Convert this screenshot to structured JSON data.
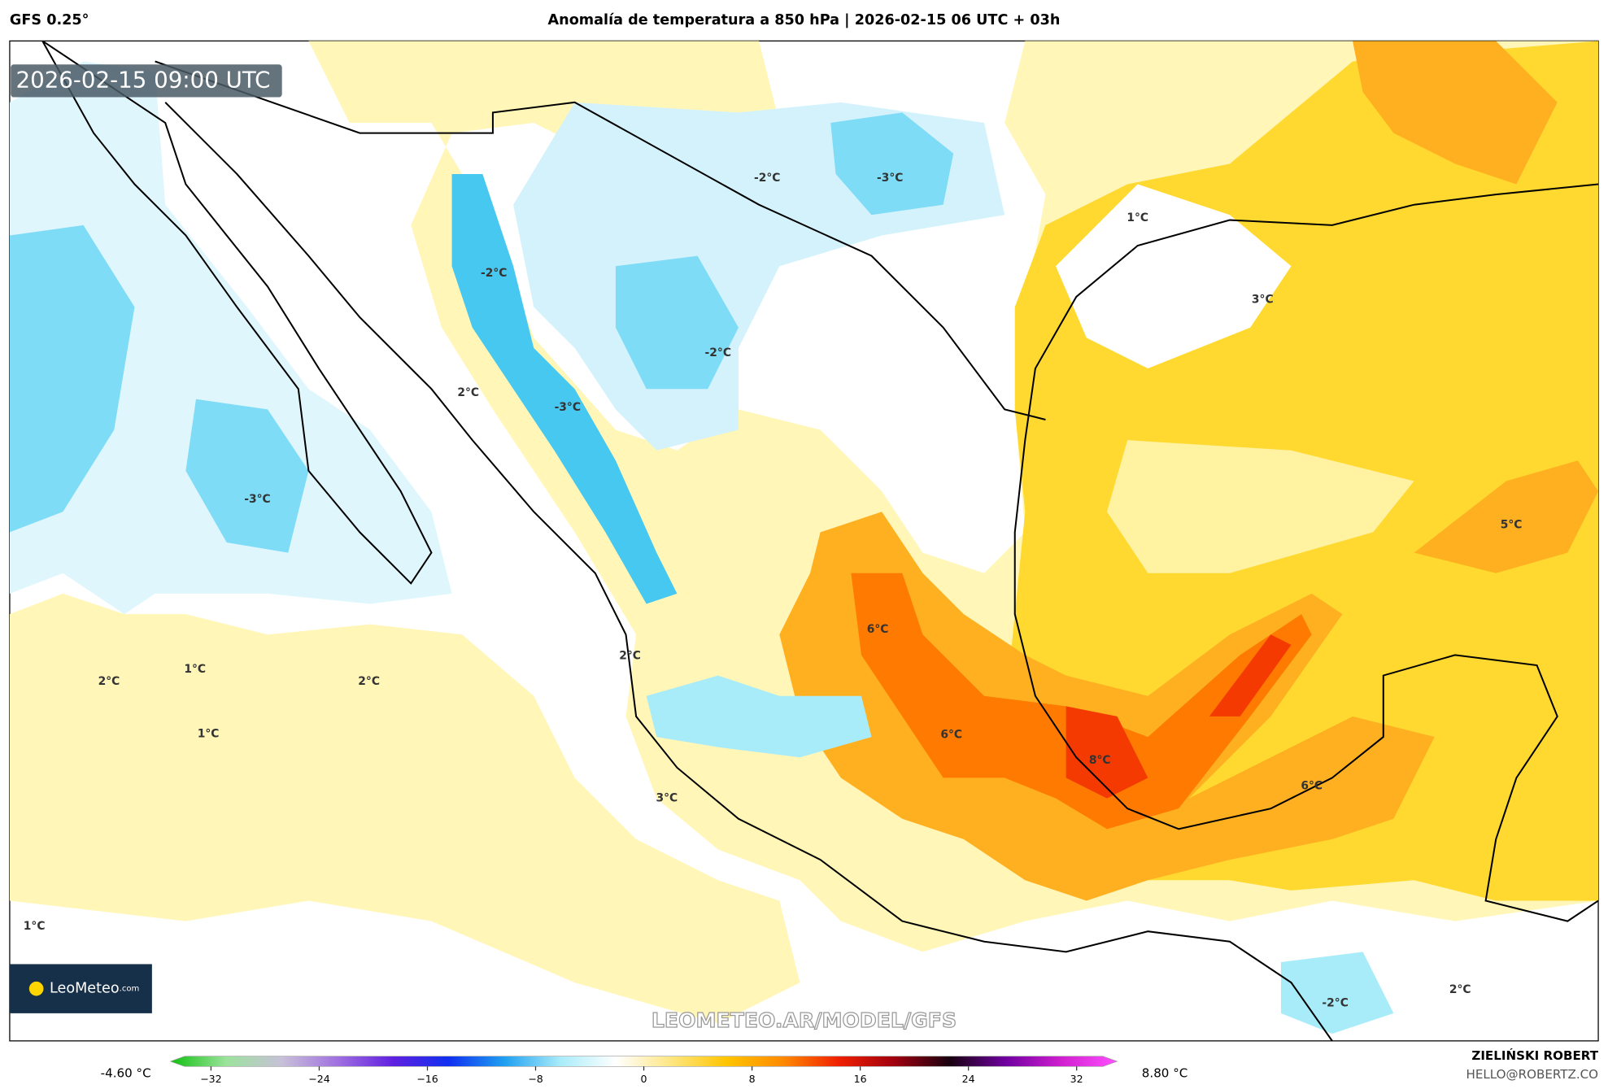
{
  "header": {
    "model": "GFS 0.25°",
    "title": "Anomalía de temperatura a 850 hPa | 2026-02-15 06 UTC + 03h"
  },
  "map": {
    "timestamp": "2026-02-15 09:00 UTC",
    "watermark": "LEOMETEO.AR/MODEL/GFS",
    "logo": "LeoMeteo",
    "logo_suffix": ".com",
    "contour_labels": [
      "-2°C",
      "-3°C",
      "1°C",
      "-2°C",
      "3°C",
      "-2°C",
      "2°C",
      "-3°C",
      "-3°C",
      "5°C",
      "6°C",
      "2°C",
      "2°C",
      "1°C",
      "2°C",
      "1°C",
      "6°C",
      "8°C",
      "6°C",
      "3°C",
      "1°C",
      "-2°C",
      "2°C"
    ]
  },
  "colorbar": {
    "min_label": "-4.60 °C",
    "max_label": "8.80 °C",
    "lim": [
      -35,
      35
    ],
    "ticks": [
      {
        "value": -32,
        "label": "−32"
      },
      {
        "value": -24,
        "label": "−24"
      },
      {
        "value": -16,
        "label": "−16"
      },
      {
        "value": -8,
        "label": "−8"
      },
      0,
      8,
      16,
      24,
      32
    ],
    "colors": [
      "#10c010",
      "#9be39b",
      "#c8c0d8",
      "#a070e0",
      "#6020e0",
      "#1030f0",
      "#20a0f0",
      "#a8ecfa",
      "#ffffff",
      "#ffe680",
      "#ffc400",
      "#ff8a00",
      "#f02000",
      "#a00010",
      "#180010",
      "#7000a0",
      "#d020d0",
      "#ff50ff"
    ]
  },
  "credits": {
    "author": "ZIELIŃSKI ROBERT",
    "email": "HELLO@ROBERTZ.CO"
  }
}
